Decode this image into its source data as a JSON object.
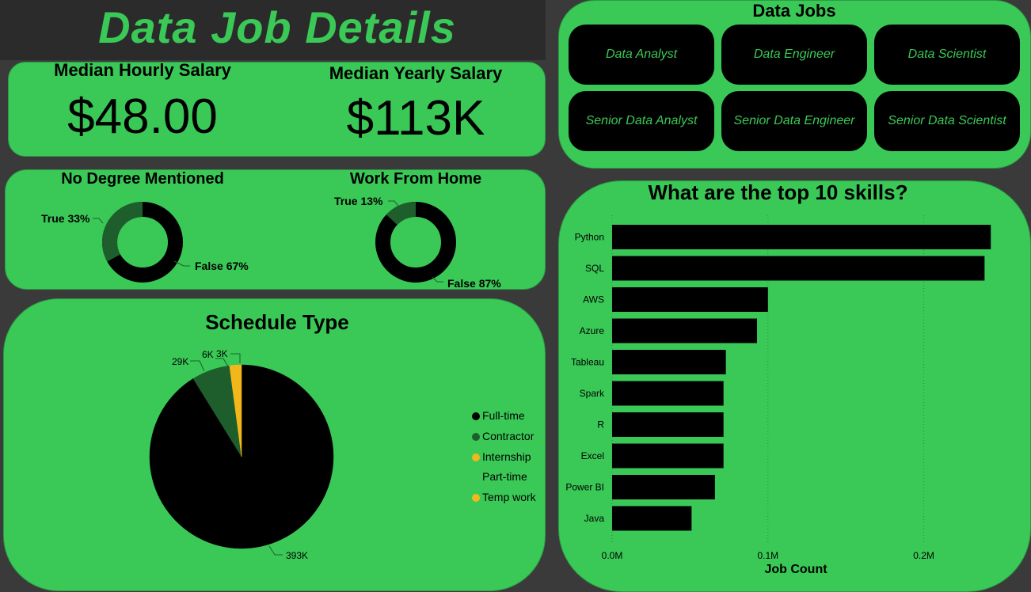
{
  "title": "Data Job Details",
  "kpis": {
    "hourly": {
      "label": "Median Hourly Salary",
      "value": "$48.00"
    },
    "yearly": {
      "label": "Median Yearly Salary",
      "value": "$113K"
    }
  },
  "donuts": {
    "no_degree": {
      "title": "No Degree Mentioned",
      "true_label": "True 33%",
      "false_label": "False 67%",
      "true_fraction": 0.33
    },
    "wfh": {
      "title": "Work From Home",
      "true_label": "True 13%",
      "false_label": "False 87%",
      "true_fraction": 0.13
    }
  },
  "jobs": {
    "title": "Data Jobs",
    "buttons": [
      "Data Analyst",
      "Data Engineer",
      "Data Scientist",
      "Senior Data Analyst",
      "Senior Data Engineer",
      "Senior Data Scientist"
    ]
  },
  "schedule": {
    "title": "Schedule Type",
    "legend": [
      "Full-time",
      "Contractor",
      "Internship",
      "Part-time",
      "Temp work"
    ],
    "labels": [
      "393K",
      "29K",
      "6K",
      "3K"
    ]
  },
  "colors": {
    "green": "#3ac957",
    "dark_green": "#1e5e2c",
    "black": "#000000",
    "yellow": "#f2b81b"
  },
  "chart_data": [
    {
      "type": "bar",
      "orientation": "horizontal",
      "title": "What are the top 10 skills?",
      "xlabel": "Job Count",
      "ylabel": "",
      "categories": [
        "Python",
        "SQL",
        "AWS",
        "Azure",
        "Tableau",
        "Spark",
        "R",
        "Excel",
        "Power BI",
        "Java"
      ],
      "values": [
        243000,
        239000,
        100000,
        93000,
        73000,
        71500,
        71500,
        71500,
        66000,
        51000
      ],
      "xlim": [
        0,
        250000
      ],
      "xticks": [
        0,
        100000,
        200000
      ],
      "xtick_labels": [
        "0.0M",
        "0.1M",
        "0.2M"
      ],
      "grid": true
    },
    {
      "type": "pie",
      "title": "Schedule Type",
      "categories": [
        "Full-time",
        "Contractor",
        "Internship",
        "Part-time",
        "Temp work"
      ],
      "values": [
        393000,
        29000,
        6000,
        0,
        3000
      ],
      "colors": [
        "#000000",
        "#1e5e2c",
        "#f2b81b",
        "#3ac957",
        "#f2b81b"
      ],
      "legend": "right"
    },
    {
      "type": "pie",
      "title": "No Degree Mentioned",
      "categories": [
        "True",
        "False"
      ],
      "values": [
        33,
        67
      ]
    },
    {
      "type": "pie",
      "title": "Work From Home",
      "categories": [
        "True",
        "False"
      ],
      "values": [
        13,
        87
      ]
    }
  ]
}
